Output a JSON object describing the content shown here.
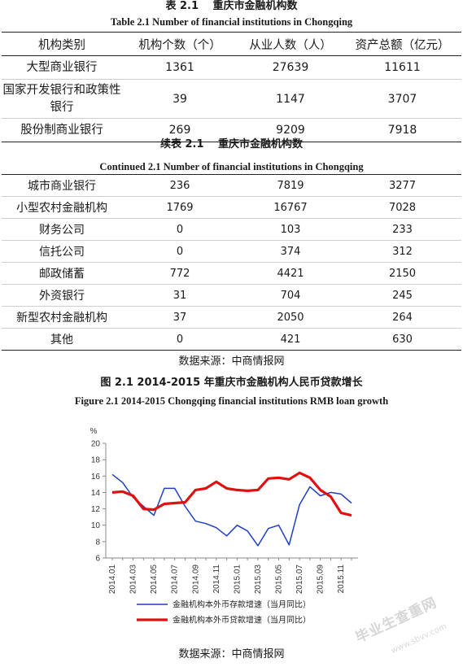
{
  "table1": {
    "caption_cn": "表 2.1  　重庆市金融机构数",
    "caption_en": "Table 2.1 Number of financial institutions in Chongqing",
    "headers": [
      "机构类别",
      "机构个数（个）",
      "从业人数（人）",
      "资产总额（亿元）"
    ],
    "rows": [
      [
        "大型商业银行",
        "1361",
        "27639",
        "11611"
      ],
      [
        "国家开发银行和政策性银行",
        "39",
        "1147",
        "3707"
      ],
      [
        "股份制商业银行",
        "269",
        "9209",
        "7918"
      ]
    ]
  },
  "table2": {
    "caption_cn": "续表 2.1  　重庆市金融机构数",
    "caption_en": "Continued 2.1 Number of financial institutions in Chongqing",
    "rows": [
      [
        "城市商业银行",
        "236",
        "7819",
        "3277"
      ],
      [
        "小型农村金融机构",
        "1769",
        "16767",
        "7028"
      ],
      [
        "财务公司",
        "0",
        "103",
        "233"
      ],
      [
        "信托公司",
        "0",
        "374",
        "312"
      ],
      [
        "邮政储蓄",
        "772",
        "4421",
        "2150"
      ],
      [
        "外资银行",
        "31",
        "704",
        "245"
      ],
      [
        "新型农村金融机构",
        "37",
        "2050",
        "264"
      ],
      [
        "其他",
        "0",
        "421",
        "630"
      ]
    ]
  },
  "source_1": "数据来源：中商情报网",
  "figure": {
    "caption_cn": "图 2.1    2014-2015 年重庆市金融机构人民币贷款增长",
    "caption_en": "Figure 2.1    2014-2015 Chongqing financial institutions RMB loan growth"
  },
  "source_2": "数据来源：中商情报网",
  "watermark": {
    "main": "毕业生查重网",
    "sub": "www.sbvv.com"
  },
  "chart_data": {
    "type": "line",
    "ylabel": "%",
    "ylim": [
      6,
      20
    ],
    "yticks": [
      "6",
      "8",
      "10",
      "12",
      "14",
      "16",
      "18",
      "20"
    ],
    "x": [
      "2014.01",
      "2014.02",
      "2014.03",
      "2014.04",
      "2014.05",
      "2014.06",
      "2014.07",
      "2014.08",
      "2014.09",
      "2014.10",
      "2014.11",
      "2014.12",
      "2015.01",
      "2015.02",
      "2015.03",
      "2015.04",
      "2015.05",
      "2015.06",
      "2015.07",
      "2015.08",
      "2015.09",
      "2015.10",
      "2015.11",
      "2015.12"
    ],
    "xtick_labels": [
      "2014.01",
      "2014.03",
      "2014.05",
      "2014.07",
      "2014.09",
      "2014.11",
      "2015.01",
      "2015.03",
      "2015.05",
      "2015.07",
      "2015.09",
      "2015.11"
    ],
    "grid": false,
    "legend_position": "bottom",
    "series": [
      {
        "name": "金融机构本外币存款增速（当月同比）",
        "color": "#1f3fbf",
        "values": [
          16.2,
          15.2,
          13.4,
          12.3,
          11.2,
          14.5,
          14.5,
          12.3,
          10.5,
          10.2,
          9.7,
          8.7,
          10.0,
          9.3,
          7.5,
          9.6,
          10.0,
          7.6,
          12.5,
          14.7,
          13.6,
          14.0,
          13.8,
          12.7
        ]
      },
      {
        "name": "金融机构本外币贷款增速（当月同比）",
        "color": "#e01010",
        "values": [
          14.0,
          14.1,
          13.6,
          12.0,
          11.9,
          12.6,
          12.7,
          12.8,
          14.3,
          14.5,
          15.3,
          14.5,
          14.3,
          14.2,
          14.3,
          15.7,
          15.8,
          15.6,
          16.4,
          15.8,
          14.3,
          13.5,
          11.5,
          11.2
        ]
      }
    ]
  }
}
